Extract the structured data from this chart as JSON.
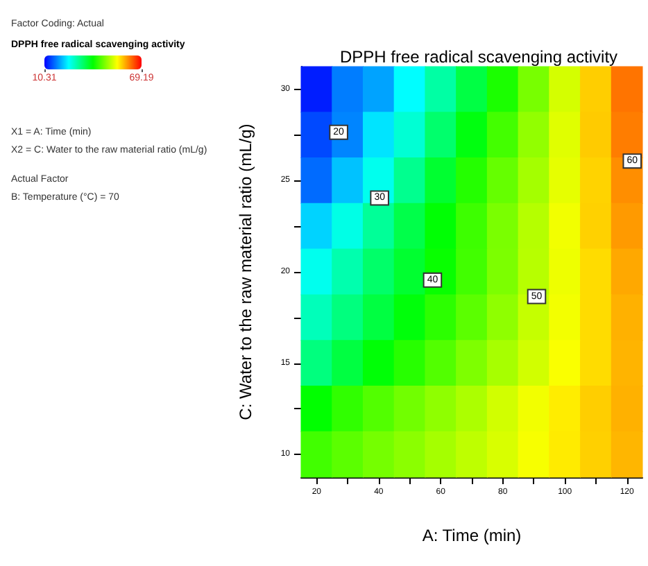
{
  "chart_data": {
    "type": "heatmap",
    "title": "DPPH free radical scavenging activity",
    "xlabel": "A: Time (min)",
    "ylabel": "C: Water to the raw material ratio (mL/g)",
    "clabel": "DPPH free radical scavenging activity",
    "categories": [
      "20",
      null,
      "40",
      null,
      "60",
      null,
      "80",
      null,
      "100",
      null,
      "120"
    ],
    "y_categories": [
      "30",
      null,
      "25",
      null,
      "20",
      null,
      "15",
      null,
      "10"
    ],
    "cells": [
      [
        12,
        17.5,
        19.7,
        25,
        30.3,
        35.8,
        41.3,
        46.7,
        52,
        57.3,
        62.5
      ],
      [
        14.5,
        18,
        23.5,
        27.5,
        33.5,
        38.9,
        43.6,
        48.2,
        52.7,
        57.5,
        62
      ],
      [
        16.5,
        21.5,
        26,
        31.5,
        37,
        41.8,
        45.6,
        49.2,
        53,
        57,
        61
      ],
      [
        22.5,
        26.5,
        31,
        35.5,
        39.5,
        43.3,
        46.8,
        50.2,
        53.7,
        57.1,
        60.3
      ],
      [
        26,
        29.7,
        33.7,
        37,
        40.2,
        43.5,
        46.9,
        50.3,
        53.5,
        56.5,
        59.5
      ],
      [
        29,
        32.5,
        36,
        39.2,
        42.3,
        45,
        48,
        51.1,
        53.8,
        56.5,
        59
      ],
      [
        32.5,
        36,
        39.4,
        42,
        44.5,
        47,
        49.4,
        51.8,
        54.2,
        56.5,
        58.8
      ],
      [
        39.8,
        42.5,
        44.5,
        46.3,
        48,
        49.7,
        51.8,
        53.7,
        55.5,
        57.3,
        59
      ],
      [
        43.5,
        45,
        46.5,
        47.8,
        49.3,
        50.7,
        52.2,
        54,
        55.6,
        57.2,
        58.7
      ]
    ],
    "clim": [
      10.31,
      69.19
    ],
    "cticks": [
      10.31,
      69.19
    ],
    "annotations": [
      "Factor Coding: Actual",
      "X1 = A: Time (min)",
      "X2 = C: Water to the raw material ratio (mL/g)",
      "Actual Factor",
      "B: Temperature (°C) = 70",
      "20",
      "30",
      "40",
      "50",
      "60"
    ]
  }
}
